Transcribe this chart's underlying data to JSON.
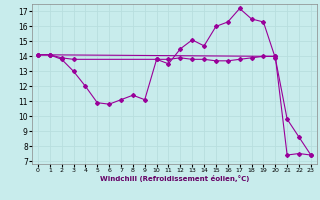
{
  "title": "",
  "xlabel": "Windchill (Refroidissement éolien,°C)",
  "bg_color": "#c8ecec",
  "grid_color": "#b8dede",
  "line_color": "#990099",
  "xlim": [
    -0.5,
    23.5
  ],
  "ylim": [
    6.8,
    17.5
  ],
  "xticks": [
    0,
    1,
    2,
    3,
    4,
    5,
    6,
    7,
    8,
    9,
    10,
    11,
    12,
    13,
    14,
    15,
    16,
    17,
    18,
    19,
    20,
    21,
    22,
    23
  ],
  "yticks": [
    7,
    8,
    9,
    10,
    11,
    12,
    13,
    14,
    15,
    16,
    17
  ],
  "line1_x": [
    0,
    1,
    2,
    3,
    4,
    5,
    6,
    7,
    8,
    9,
    10,
    11,
    12,
    13,
    14,
    15,
    16,
    17,
    18,
    19,
    20,
    21,
    22,
    23
  ],
  "line1_y": [
    14.1,
    14.1,
    13.8,
    13.0,
    12.0,
    10.9,
    10.8,
    11.1,
    11.4,
    11.1,
    13.8,
    13.5,
    14.5,
    15.1,
    14.7,
    16.0,
    16.3,
    17.2,
    16.5,
    16.3,
    13.9,
    9.8,
    8.6,
    7.4
  ],
  "line2_x": [
    0,
    1,
    2,
    3,
    10,
    11,
    12,
    13,
    14,
    15,
    16,
    17,
    18,
    19,
    20
  ],
  "line2_y": [
    14.1,
    14.1,
    13.9,
    13.8,
    13.8,
    13.8,
    13.9,
    13.8,
    13.8,
    13.7,
    13.7,
    13.8,
    13.9,
    14.0,
    14.0
  ],
  "line3_x": [
    0,
    1,
    20,
    21,
    22,
    23
  ],
  "line3_y": [
    14.1,
    14.1,
    14.0,
    7.4,
    7.5,
    7.4
  ]
}
